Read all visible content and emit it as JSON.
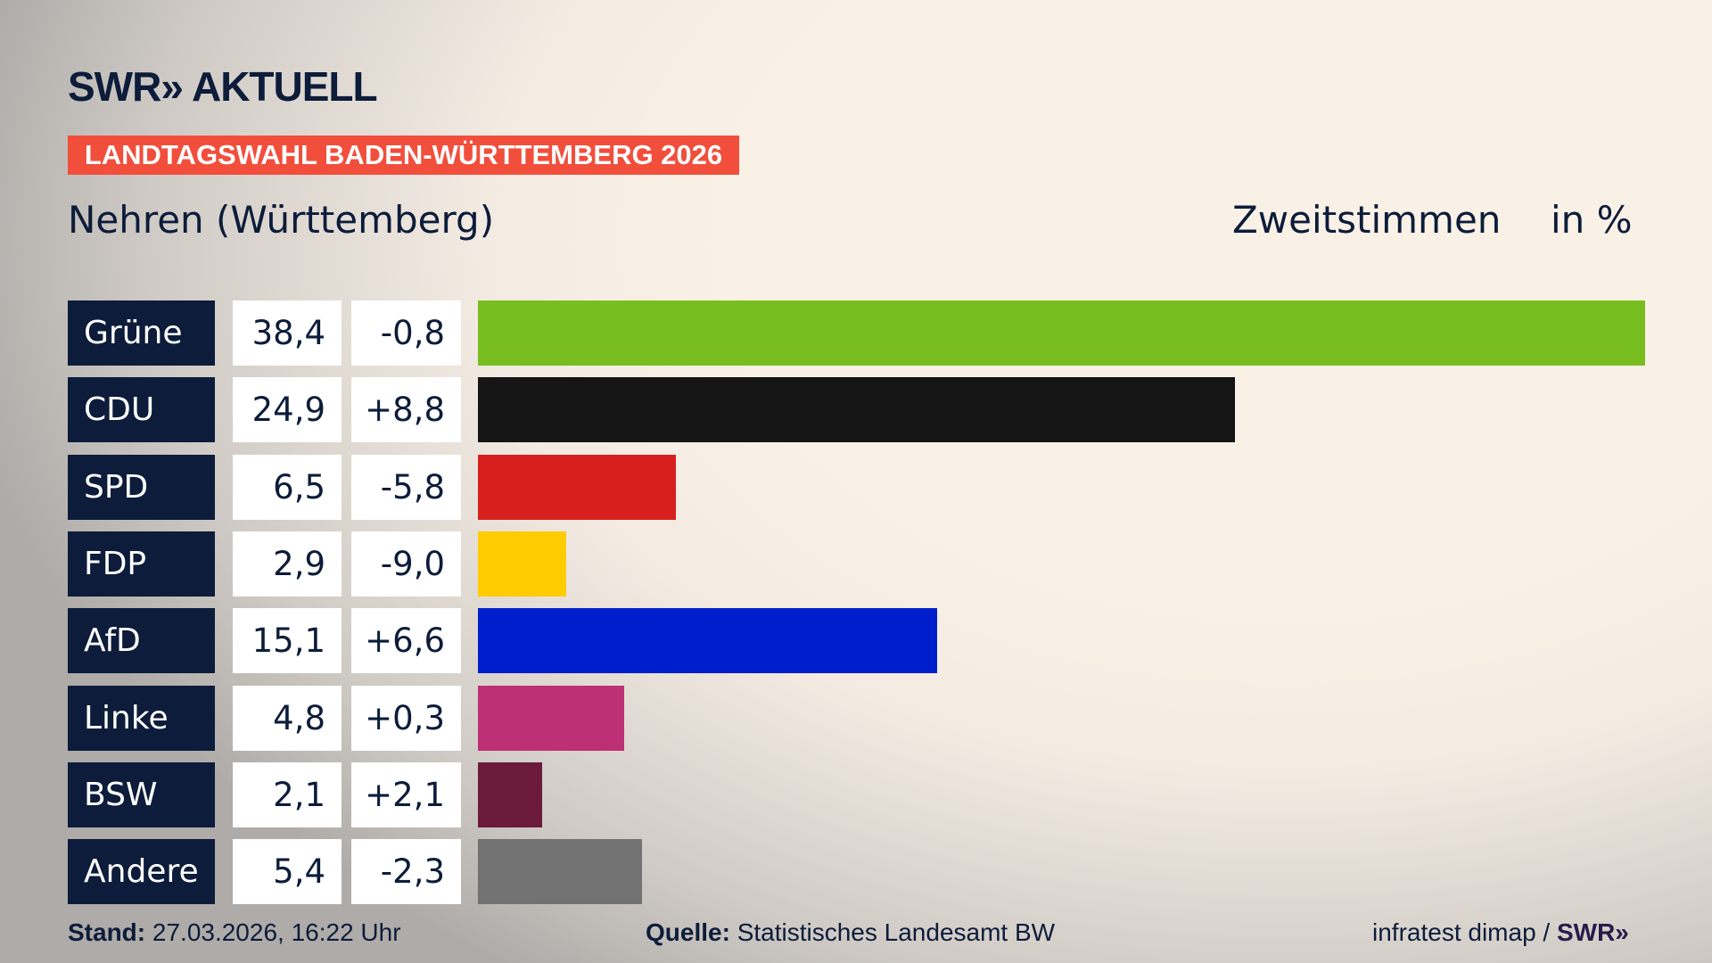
{
  "header": {
    "logo": "SWR» AKTUELL",
    "banner": "LANDTAGSWAHL BADEN-WÜRTTEMBERG 2026",
    "location": "Nehren (Württemberg)",
    "vote_type": "Zweitstimmen",
    "unit": "in %"
  },
  "chart_data": {
    "type": "bar",
    "orientation": "horizontal",
    "categories": [
      "Grüne",
      "CDU",
      "SPD",
      "FDP",
      "AfD",
      "Linke",
      "BSW",
      "Andere"
    ],
    "values": [
      38.4,
      24.9,
      6.5,
      2.9,
      15.1,
      4.8,
      2.1,
      5.4
    ],
    "value_labels": [
      "38,4",
      "24,9",
      "6,5",
      "2,9",
      "15,1",
      "4,8",
      "2,1",
      "5,4"
    ],
    "change_labels": [
      "-0,8",
      "+8,8",
      "-5,8",
      "-9,0",
      "+6,6",
      "+0,3",
      "+2,1",
      "-2,3"
    ],
    "changes": [
      -0.8,
      8.8,
      -5.8,
      -9.0,
      6.6,
      0.3,
      2.1,
      -2.3
    ],
    "colors": [
      "#78be20",
      "#151515",
      "#d71f1d",
      "#ffcc00",
      "#001fcc",
      "#be3075",
      "#6b1a3c",
      "#727272"
    ],
    "xlim": [
      0,
      38.4
    ],
    "grid": false
  },
  "footer": {
    "stand_label": "Stand:",
    "stand_value": "27.03.2026, 16:22 Uhr",
    "source_label": "Quelle:",
    "source_value": "Statistisches Landesamt BW",
    "credit": "infratest dimap /",
    "credit_logo": "SWR»"
  }
}
